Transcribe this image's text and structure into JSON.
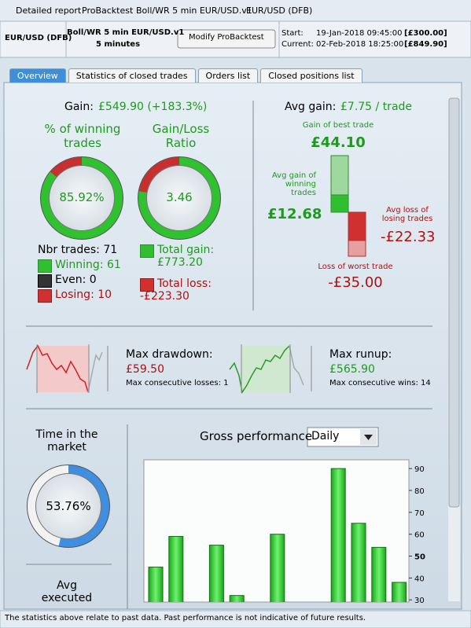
{
  "window": {
    "tabs": [
      "Detailed report",
      "ProBacktest",
      "Boll/WR 5 min EUR/USD.v1",
      "EUR/USD (DFB)"
    ]
  },
  "header": {
    "instrument": "EUR/USD (DFB)",
    "system": "Boll/WR 5 min EUR/USD.v1",
    "timeframe": "5 minutes",
    "button": "Modify ProBacktest",
    "start_label": "Start:",
    "start_date": "19-Jan-2018 09:45:00",
    "start_value": "[£300.00]",
    "current_label": "Current:",
    "current_date": "02-Feb-2018 18:25:00",
    "current_value": "[£849.90]"
  },
  "tabs": [
    "Overview",
    "Statistics of closed trades",
    "Orders list",
    "Closed positions list"
  ],
  "gain": {
    "label": "Gain:",
    "value": "£549.90 (+183.3%)"
  },
  "winning_pct": {
    "title": "% of winning trades",
    "value": 85.92,
    "value_label": "85.92%"
  },
  "ratio": {
    "title": "Gain/Loss Ratio",
    "value": 3.46
  },
  "trades": {
    "nbr": "Nbr trades: 71",
    "winning": "Winning: 61",
    "even": "Even: 0",
    "losing": "Losing: 10"
  },
  "totals": {
    "gain_label": "Total gain:",
    "gain": "£773.20",
    "loss_label": "Total loss:",
    "loss": "-£223.30"
  },
  "avg": {
    "label": "Avg gain:",
    "value": "£7.75 / trade",
    "best_label": "Gain of best trade",
    "best": "£44.10",
    "avg_win_label": "Avg gain of winning trades",
    "avg_win": "£12.68",
    "avg_loss_label": "Avg loss of losing trades",
    "avg_loss": "-£22.33",
    "worst_label": "Loss of worst trade",
    "worst": "-£35.00"
  },
  "drawdown": {
    "label": "Max drawdown:",
    "value": "£59.50",
    "note": "Max consecutive losses: 1"
  },
  "runup": {
    "label": "Max runup:",
    "value": "£565.90",
    "note": "Max consecutive wins: 14"
  },
  "market": {
    "title": "Time in the market",
    "value": 53.76,
    "value_label": "53.76%"
  },
  "avg_executed": "Avg executed",
  "gross": {
    "title": "Gross performance",
    "period": "Daily",
    "values": [
      45,
      59,
      null,
      55,
      32,
      null,
      60,
      null,
      null,
      90,
      65,
      54,
      38
    ],
    "ylim": [
      29,
      94
    ],
    "yticks": [
      30,
      40,
      50,
      60,
      70,
      80,
      90
    ]
  },
  "footer": "The statistics above relate to past data. Past performance is not indicative of future results."
}
